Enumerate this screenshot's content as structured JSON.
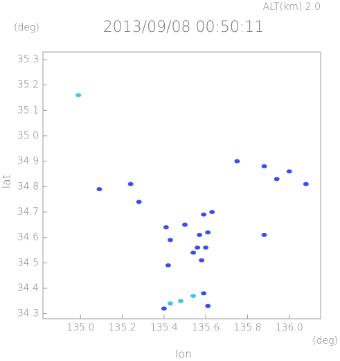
{
  "chart_data": {
    "type": "scatter",
    "title": "2013/09/08 00:50:11",
    "annotation": "ALT(km) 2.0",
    "y_unit": "(deg)",
    "x_unit": "(deg)",
    "x_label": "lon",
    "y_label": "lat",
    "xlim": [
      134.82,
      136.15
    ],
    "ylim": [
      34.28,
      35.33
    ],
    "xticks": [
      {
        "value": 135,
        "label": "135.0"
      },
      135.2,
      135.4,
      135.6,
      135.8,
      {
        "value": 136,
        "label": "136.0"
      }
    ],
    "yticks": [
      34.3,
      34.4,
      34.5,
      34.6,
      34.7,
      34.8,
      34.9,
      {
        "value": 35,
        "label": "35.0"
      },
      35.1,
      35.2,
      35.3
    ],
    "series": [
      {
        "color": "#3b4ee8",
        "x": [
          135.09,
          135.24,
          135.28,
          135.41,
          135.43,
          135.42,
          135.59,
          135.63,
          135.57,
          135.61,
          135.56,
          135.6,
          135.58,
          135.54,
          135.59,
          135.4,
          135.61,
          135.75,
          135.88,
          135.94,
          136.0,
          136.08,
          135.88,
          135.5
        ],
        "y": [
          34.79,
          34.81,
          34.74,
          34.64,
          34.59,
          34.49,
          34.69,
          34.7,
          34.61,
          34.62,
          34.56,
          34.56,
          34.51,
          34.54,
          34.38,
          34.32,
          34.33,
          34.9,
          34.88,
          34.83,
          34.86,
          34.81,
          34.61,
          34.65
        ]
      },
      {
        "color": "#40c8e6",
        "x": [
          134.99,
          135.54,
          135.48,
          135.43
        ],
        "y": [
          35.16,
          34.37,
          34.35,
          34.34
        ]
      }
    ]
  }
}
